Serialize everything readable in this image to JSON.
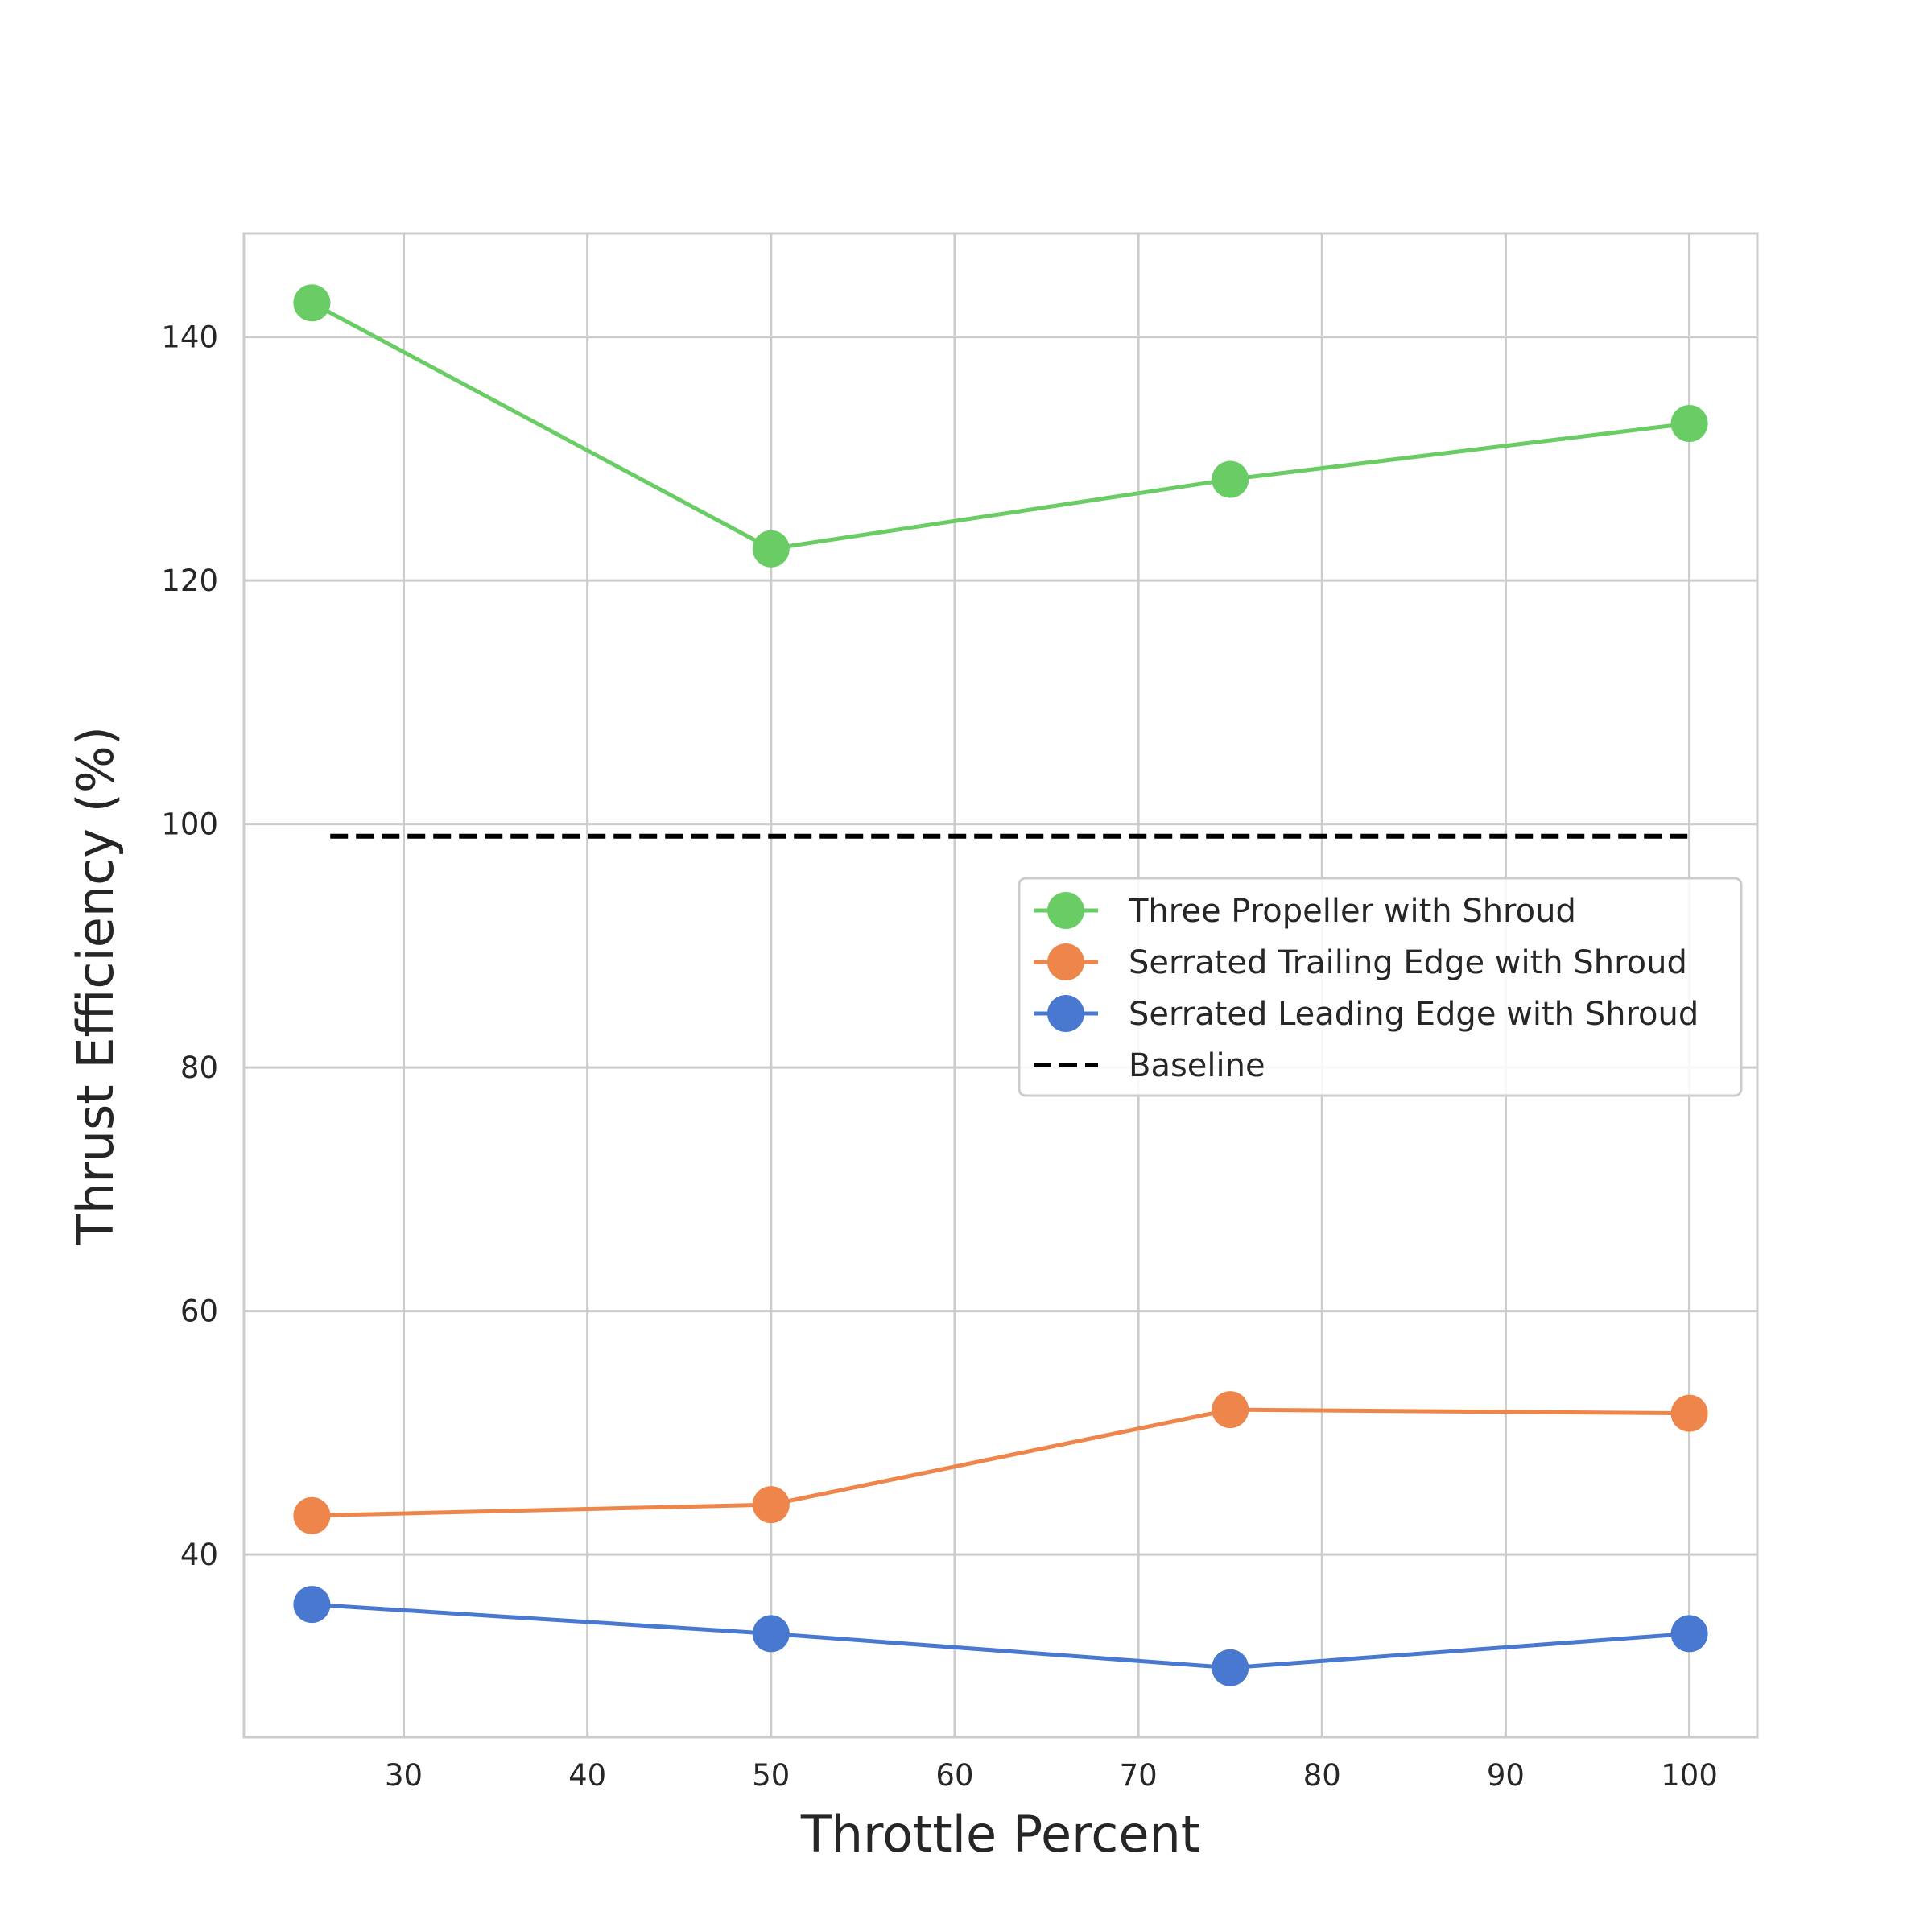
{
  "chart_data": {
    "type": "line",
    "title": "",
    "xlabel": "Throttle Percent",
    "ylabel": "Thrust Efficiency (%)",
    "xlim": [
      21.3,
      103.7
    ],
    "ylim": [
      25,
      148.5
    ],
    "xticks": [
      30,
      40,
      50,
      60,
      70,
      80,
      90,
      100
    ],
    "yticks": [
      40,
      60,
      80,
      100,
      120,
      140
    ],
    "grid": true,
    "legend_position": "center-right",
    "series": [
      {
        "name": "Three Propeller with Shroud",
        "color": "#6acc64",
        "style": "solid",
        "marker": "circle",
        "x": [
          25,
          50,
          75,
          100
        ],
        "y": [
          142.8,
          122.6,
          128.3,
          132.9
        ]
      },
      {
        "name": "Serrated Trailing Edge with Shroud",
        "color": "#ee854a",
        "style": "solid",
        "marker": "circle",
        "x": [
          25,
          50,
          75,
          100
        ],
        "y": [
          43.2,
          44.1,
          51.9,
          51.6
        ]
      },
      {
        "name": "Serrated Leading Edge with Shroud",
        "color": "#4878d0",
        "style": "solid",
        "marker": "circle",
        "x": [
          25,
          50,
          75,
          100
        ],
        "y": [
          35.9,
          33.5,
          30.7,
          33.5
        ]
      },
      {
        "name": "Baseline",
        "color": "#000000",
        "style": "dashed",
        "marker": "none",
        "x": [
          26,
          100
        ],
        "y": [
          99,
          99
        ]
      }
    ]
  }
}
